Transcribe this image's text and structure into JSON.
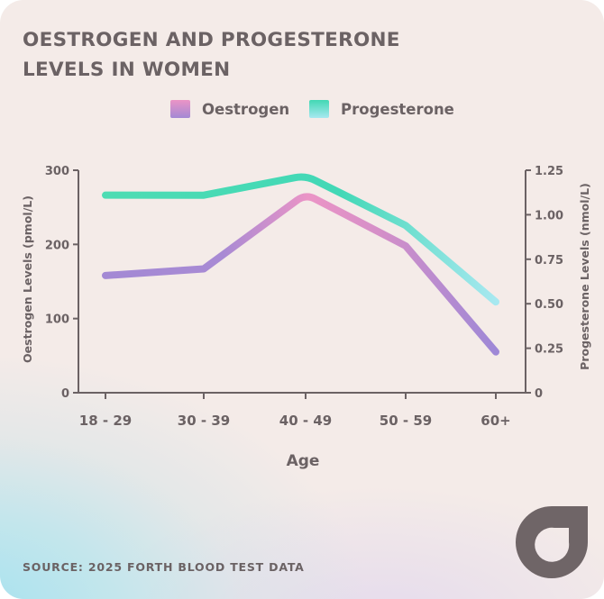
{
  "title": "OESTROGEN AND PROGESTERONE\nLEVELS IN WOMEN",
  "source": "SOURCE: 2025 FORTH BLOOD TEST DATA",
  "chart_data": {
    "type": "line",
    "categories": [
      "18 - 29",
      "30 - 39",
      "40 - 49",
      "50 - 59",
      "60+"
    ],
    "xlabel": "Age",
    "ylabel": "Oestrogen Levels (pmol/L)",
    "ylim": [
      0,
      300
    ],
    "yticks": [
      "0",
      "100",
      "200",
      "300"
    ],
    "y2label": "Progesterone Levels (nmol/L)",
    "y2lim": [
      0,
      1.25
    ],
    "y2ticks": [
      "0",
      "0.25",
      "0.50",
      "0.75",
      "1.00",
      "1.25"
    ],
    "grid": false,
    "legend_position": "top",
    "series": [
      {
        "name": "Oestrogen",
        "axis": "left",
        "values": [
          158,
          167,
          268,
          198,
          55
        ],
        "color_start": "#eb94c6",
        "color_end": "#a389d4"
      },
      {
        "name": "Progesterone",
        "axis": "right",
        "values": [
          1.11,
          1.11,
          1.22,
          0.94,
          0.51
        ],
        "color_start": "#4ddcb3",
        "color_end": "#a7e8f0"
      }
    ]
  },
  "colors": {
    "text": "#6b6264",
    "axis": "#6b6264",
    "logo": "#6f6567"
  }
}
